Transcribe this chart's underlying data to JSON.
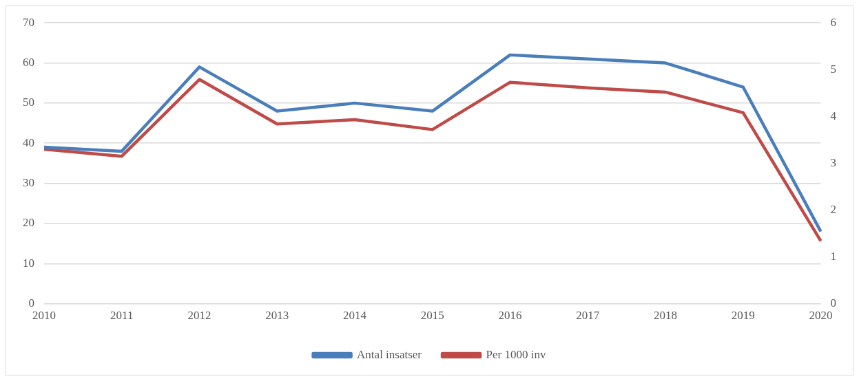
{
  "chart_data": {
    "type": "line",
    "categories": [
      "2010",
      "2011",
      "2012",
      "2013",
      "2014",
      "2015",
      "2016",
      "2017",
      "2018",
      "2019",
      "2020"
    ],
    "series": [
      {
        "name": "Antal insatser",
        "color": "#4a7ebb",
        "values": [
          39,
          38,
          59,
          48,
          50,
          48,
          62,
          61,
          60,
          54,
          18
        ]
      },
      {
        "name": "Per 1000 inv",
        "color": "#be4b48",
        "axis": "y2",
        "values": [
          3.3,
          3.15,
          4.79,
          3.84,
          3.93,
          3.72,
          4.73,
          4.61,
          4.52,
          4.08,
          1.34
        ]
      }
    ],
    "ylim": [
      0,
      70
    ],
    "yticks": [
      0,
      10,
      20,
      30,
      40,
      50,
      60,
      70
    ],
    "y2lim": [
      0,
      6
    ],
    "y2ticks": [
      0,
      1,
      2,
      3,
      4,
      5,
      6
    ],
    "grid": "y",
    "legend": "bottom",
    "marker": "none",
    "line_style": "solid"
  }
}
